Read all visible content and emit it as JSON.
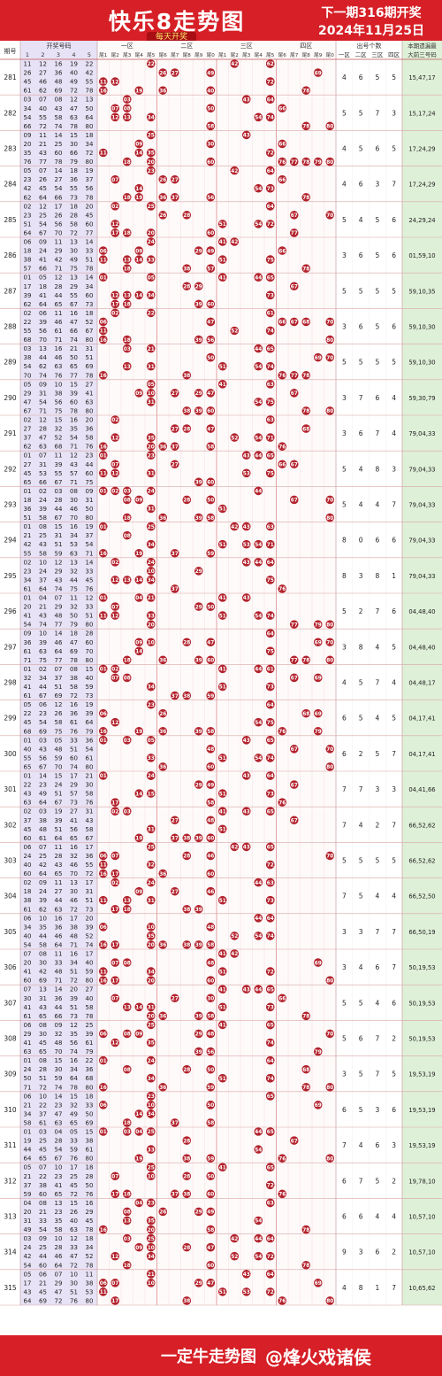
{
  "header": {
    "title": "快乐8走势图",
    "subtitle": "每天开奖",
    "next_draw": "下一期316期开奖",
    "date": "2024年11月25日"
  },
  "footer": {
    "slogan": "一定牛走势图",
    "watermark": "@烽火戏诸侯"
  },
  "colors": {
    "brand_red": "#d61f26",
    "ball_red": "#b3232d",
    "period_bg": "#e7e2f5",
    "count_green": "#dff0d8",
    "hit_pink": "#f6dde0"
  },
  "columns": {
    "period": "期号",
    "draw_numbers": "开奖号码",
    "draw_number_cols": [
      "1",
      "2",
      "3",
      "4",
      "5"
    ],
    "zones": [
      "一区",
      "二区",
      "三区",
      "四区"
    ],
    "tails": [
      "尾1",
      "尾2",
      "尾3",
      "尾4",
      "尾5",
      "尾6",
      "尾7",
      "尾8",
      "尾9",
      "尾0"
    ],
    "zone_count_group": "出号个数",
    "zone_counts": [
      "一区",
      "二区",
      "三区",
      "四区"
    ],
    "last_group": "本期遗漏最",
    "last_sub": "大前三号码"
  },
  "chart_data": {
    "type": "table",
    "title": "快乐8走势图",
    "rows": [
      {
        "period": "281",
        "numbers": [
          11,
          12,
          16,
          19,
          22,
          26,
          27,
          36,
          40,
          42,
          45,
          46,
          48,
          49,
          55,
          61,
          62,
          69,
          72,
          78
        ],
        "counts": [
          4,
          6,
          5,
          5
        ],
        "max3": "15,47,17"
      },
      {
        "period": "282",
        "numbers": [
          3,
          7,
          8,
          12,
          13,
          34,
          40,
          43,
          47,
          50,
          54,
          55,
          58,
          63,
          64,
          66,
          72,
          74,
          78,
          80
        ],
        "counts": [
          5,
          5,
          7,
          3
        ],
        "max3": "15,17,24"
      },
      {
        "period": "283",
        "numbers": [
          9,
          11,
          14,
          15,
          18,
          20,
          21,
          25,
          30,
          34,
          35,
          43,
          60,
          66,
          72,
          76,
          77,
          78,
          79,
          80
        ],
        "counts": [
          4,
          5,
          6,
          5
        ],
        "max3": "17,24,29"
      },
      {
        "period": "284",
        "numbers": [
          5,
          7,
          14,
          18,
          19,
          23,
          26,
          27,
          36,
          37,
          42,
          45,
          54,
          55,
          56,
          62,
          64,
          66,
          73,
          78
        ],
        "counts": [
          4,
          6,
          3,
          7
        ],
        "max3": "17,24,29"
      },
      {
        "period": "285",
        "numbers": [
          2,
          12,
          17,
          18,
          20,
          23,
          25,
          26,
          28,
          45,
          51,
          54,
          56,
          58,
          60,
          64,
          67,
          70,
          72,
          77
        ],
        "counts": [
          5,
          4,
          5,
          6
        ],
        "max3": "24,29,24"
      },
      {
        "period": "286",
        "numbers": [
          6,
          9,
          11,
          13,
          14,
          18,
          24,
          29,
          30,
          33,
          38,
          41,
          42,
          49,
          51,
          57,
          66,
          71,
          75,
          78
        ],
        "counts": [
          3,
          6,
          5,
          6
        ],
        "max3": "01,59,10"
      },
      {
        "period": "287",
        "numbers": [
          1,
          5,
          12,
          13,
          14,
          17,
          18,
          28,
          29,
          34,
          39,
          41,
          44,
          55,
          60,
          62,
          64,
          65,
          67,
          73
        ],
        "counts": [
          5,
          5,
          5,
          5
        ],
        "max3": "59,10,35"
      },
      {
        "period": "288",
        "numbers": [
          2,
          6,
          11,
          16,
          18,
          22,
          39,
          46,
          47,
          52,
          55,
          56,
          61,
          66,
          67,
          68,
          70,
          71,
          74,
          80
        ],
        "counts": [
          3,
          6,
          5,
          6
        ],
        "max3": "59,10,30"
      },
      {
        "period": "289",
        "numbers": [
          3,
          13,
          16,
          21,
          31,
          38,
          44,
          46,
          50,
          51,
          54,
          62,
          63,
          65,
          69,
          70,
          74,
          76,
          77,
          78
        ],
        "counts": [
          5,
          5,
          5,
          5
        ],
        "max3": "59,10,30"
      },
      {
        "period": "290",
        "numbers": [
          5,
          9,
          10,
          15,
          27,
          29,
          31,
          38,
          39,
          41,
          47,
          54,
          56,
          60,
          63,
          67,
          71,
          75,
          78,
          80
        ],
        "counts": [
          3,
          7,
          6,
          4
        ],
        "max3": "59,30,79"
      },
      {
        "period": "291",
        "numbers": [
          2,
          12,
          15,
          16,
          20,
          27,
          28,
          32,
          35,
          36,
          37,
          47,
          52,
          54,
          58,
          62,
          63,
          68,
          71,
          76
        ],
        "counts": [
          3,
          6,
          7,
          4
        ],
        "max3": "79,04,33"
      },
      {
        "period": "292",
        "numbers": [
          1,
          7,
          11,
          12,
          23,
          27,
          31,
          39,
          43,
          44,
          45,
          53,
          55,
          57,
          60,
          65,
          66,
          67,
          71,
          75
        ],
        "counts": [
          5,
          4,
          8,
          3
        ],
        "max3": "79,04,33"
      },
      {
        "period": "293",
        "numbers": [
          1,
          2,
          3,
          8,
          9,
          18,
          24,
          28,
          30,
          31,
          36,
          39,
          44,
          46,
          50,
          51,
          58,
          67,
          70,
          80
        ],
        "counts": [
          5,
          4,
          4,
          7
        ],
        "max3": "79,04,33"
      },
      {
        "period": "294",
        "numbers": [
          1,
          8,
          15,
          16,
          19,
          21,
          25,
          31,
          34,
          37,
          42,
          43,
          51,
          53,
          54,
          55,
          58,
          59,
          63,
          71
        ],
        "counts": [
          8,
          0,
          6,
          6
        ],
        "max3": "79,04,33"
      },
      {
        "period": "295",
        "numbers": [
          2,
          10,
          12,
          13,
          14,
          23,
          24,
          29,
          32,
          33,
          34,
          37,
          43,
          44,
          45,
          61,
          64,
          74,
          75,
          76
        ],
        "counts": [
          8,
          3,
          8,
          1
        ],
        "max3": "79,04,33"
      },
      {
        "period": "296",
        "numbers": [
          1,
          4,
          7,
          11,
          12,
          20,
          21,
          29,
          32,
          33,
          41,
          43,
          48,
          50,
          51,
          54,
          74,
          77,
          79,
          80
        ],
        "counts": [
          5,
          2,
          7,
          6
        ],
        "max3": "04,48,40"
      },
      {
        "period": "297",
        "numbers": [
          9,
          10,
          14,
          18,
          28,
          36,
          39,
          46,
          47,
          60,
          61,
          63,
          64,
          69,
          70,
          71,
          75,
          77,
          78,
          80
        ],
        "counts": [
          3,
          8,
          4,
          5
        ],
        "max3": "04,48,40"
      },
      {
        "period": "298",
        "numbers": [
          1,
          2,
          7,
          8,
          15,
          32,
          34,
          37,
          38,
          40,
          41,
          44,
          51,
          58,
          59,
          61,
          67,
          69,
          72,
          73
        ],
        "counts": [
          4,
          5,
          7,
          4
        ],
        "max3": "04,48,17"
      },
      {
        "period": "299",
        "numbers": [
          5,
          6,
          12,
          16,
          19,
          22,
          23,
          26,
          36,
          39,
          45,
          54,
          58,
          61,
          64,
          68,
          69,
          75,
          76,
          79
        ],
        "counts": [
          6,
          5,
          4,
          5
        ],
        "max3": "04,17,41"
      },
      {
        "period": "300",
        "numbers": [
          1,
          3,
          5,
          33,
          36,
          40,
          43,
          48,
          51,
          54,
          55,
          56,
          59,
          60,
          61,
          65,
          67,
          70,
          74,
          80
        ],
        "counts": [
          6,
          2,
          5,
          7
        ],
        "max3": "04,17,41"
      },
      {
        "period": "301",
        "numbers": [
          1,
          14,
          15,
          17,
          21,
          22,
          23,
          24,
          29,
          30,
          43,
          49,
          51,
          57,
          58,
          63,
          64,
          67,
          73,
          76
        ],
        "counts": [
          7,
          7,
          3,
          3
        ],
        "max3": "04,41,66"
      },
      {
        "period": "302",
        "numbers": [
          2,
          3,
          19,
          27,
          31,
          37,
          38,
          39,
          41,
          43,
          45,
          48,
          51,
          56,
          58,
          60,
          61,
          64,
          65,
          67
        ],
        "counts": [
          7,
          4,
          2,
          7
        ],
        "max3": "66,52,62"
      },
      {
        "period": "303",
        "numbers": [
          6,
          7,
          11,
          16,
          17,
          24,
          25,
          28,
          32,
          36,
          40,
          42,
          43,
          46,
          55,
          60,
          64,
          65,
          70,
          72
        ],
        "counts": [
          5,
          5,
          5,
          5
        ],
        "max3": "66,52,62"
      },
      {
        "period": "304",
        "numbers": [
          2,
          9,
          11,
          13,
          17,
          18,
          24,
          27,
          30,
          31,
          38,
          39,
          44,
          46,
          51,
          61,
          62,
          63,
          72,
          73
        ],
        "counts": [
          7,
          5,
          4,
          4
        ],
        "max3": "66,52,50"
      },
      {
        "period": "305",
        "numbers": [
          6,
          10,
          16,
          17,
          20,
          34,
          35,
          36,
          38,
          39,
          40,
          44,
          46,
          48,
          52,
          54,
          58,
          64,
          71,
          74
        ],
        "counts": [
          3,
          3,
          7,
          7
        ],
        "max3": "66,50,19"
      },
      {
        "period": "306",
        "numbers": [
          7,
          8,
          11,
          16,
          17,
          20,
          30,
          33,
          34,
          40,
          41,
          42,
          48,
          51,
          59,
          60,
          69,
          71,
          72,
          80
        ],
        "counts": [
          3,
          4,
          6,
          7
        ],
        "max3": "50,19,53"
      },
      {
        "period": "307",
        "numbers": [
          7,
          13,
          14,
          20,
          27,
          30,
          31,
          36,
          39,
          40,
          41,
          43,
          44,
          51,
          58,
          61,
          65,
          66,
          73,
          78
        ],
        "counts": [
          5,
          5,
          4,
          6
        ],
        "max3": "50,19,53"
      },
      {
        "period": "308",
        "numbers": [
          6,
          8,
          9,
          12,
          25,
          29,
          30,
          32,
          35,
          39,
          41,
          45,
          48,
          56,
          61,
          63,
          65,
          70,
          74,
          79
        ],
        "counts": [
          5,
          6,
          7,
          2
        ],
        "max3": "50,19,53"
      },
      {
        "period": "309",
        "numbers": [
          1,
          8,
          15,
          16,
          22,
          24,
          28,
          30,
          34,
          36,
          50,
          51,
          59,
          64,
          68,
          71,
          72,
          74,
          78,
          80
        ],
        "counts": [
          3,
          5,
          7,
          5
        ],
        "max3": "19,53,19"
      },
      {
        "period": "310",
        "numbers": [
          6,
          10,
          14,
          15,
          18,
          21,
          22,
          23,
          32,
          33,
          34,
          37,
          47,
          49,
          50,
          58,
          61,
          63,
          65,
          69
        ],
        "counts": [
          6,
          5,
          3,
          6
        ],
        "max3": "19,53,19"
      },
      {
        "period": "311",
        "numbers": [
          1,
          3,
          4,
          5,
          15,
          19,
          25,
          28,
          33,
          38,
          44,
          45,
          54,
          59,
          61,
          64,
          65,
          67,
          76,
          80
        ],
        "counts": [
          7,
          4,
          6,
          3
        ],
        "max3": "19,53,19"
      },
      {
        "period": "312",
        "numbers": [
          5,
          7,
          10,
          17,
          18,
          21,
          22,
          23,
          25,
          28,
          37,
          38,
          41,
          45,
          50,
          59,
          60,
          65,
          72,
          76
        ],
        "counts": [
          6,
          7,
          5,
          2
        ],
        "max3": "19,78,10"
      },
      {
        "period": "313",
        "numbers": [
          4,
          8,
          13,
          15,
          16,
          20,
          21,
          23,
          26,
          29,
          31,
          33,
          35,
          40,
          45,
          49,
          54,
          58,
          63,
          78
        ],
        "counts": [
          6,
          6,
          4,
          4
        ],
        "max3": "10,57,10"
      },
      {
        "period": "314",
        "numbers": [
          3,
          9,
          10,
          12,
          18,
          24,
          25,
          28,
          33,
          34,
          42,
          44,
          46,
          47,
          52,
          54,
          60,
          64,
          72,
          78
        ],
        "counts": [
          9,
          3,
          6,
          2
        ],
        "max3": "10,57,10"
      },
      {
        "period": "315",
        "numbers": [
          5,
          6,
          7,
          10,
          11,
          17,
          21,
          29,
          30,
          38,
          43,
          45,
          47,
          51,
          53,
          64,
          69,
          72,
          76,
          80
        ],
        "counts": [
          4,
          8,
          1,
          7
        ],
        "max3": "10,65,62"
      }
    ]
  }
}
